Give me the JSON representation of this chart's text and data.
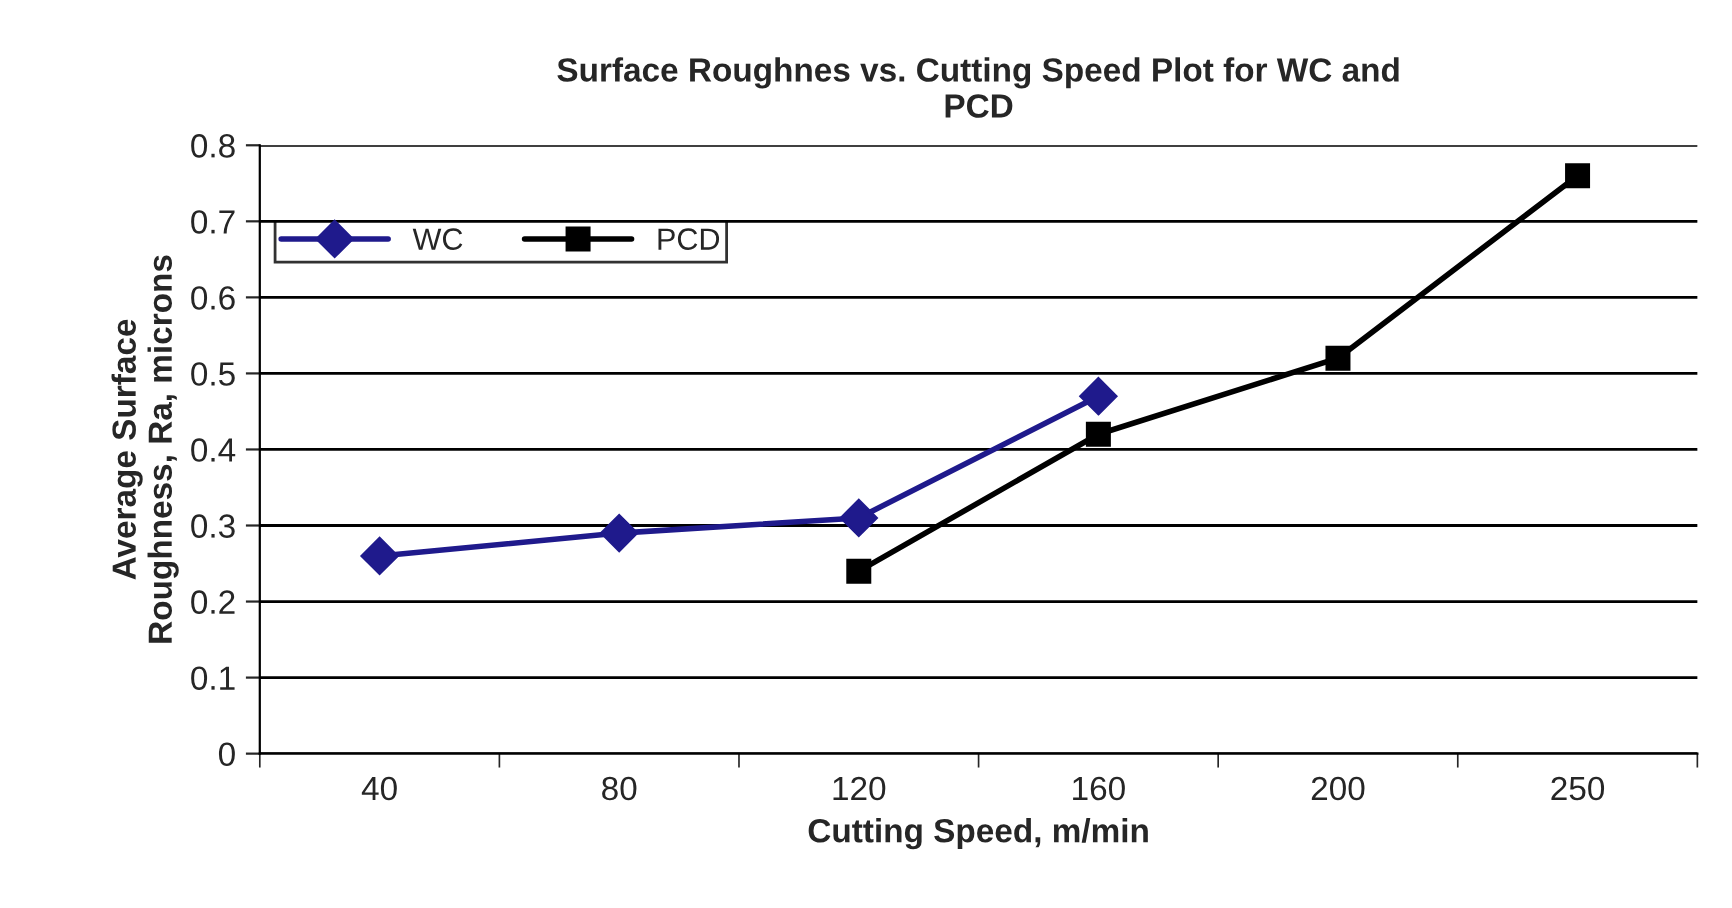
{
  "chart_data": {
    "type": "line",
    "title": "Surface Roughnes vs. Cutting Speed Plot for WC and\nPCD",
    "xlabel": "Cutting Speed, m/min",
    "ylabel": "Average Surface\nRoughness, Ra, microns",
    "categories": [
      "40",
      "80",
      "120",
      "160",
      "200",
      "250"
    ],
    "series": [
      {
        "name": "WC",
        "color": "#1f1a8c",
        "marker": "diamond",
        "values": [
          0.26,
          0.29,
          0.31,
          0.47,
          null,
          null
        ]
      },
      {
        "name": "PCD",
        "color": "#000000",
        "marker": "square",
        "values": [
          null,
          null,
          0.24,
          0.42,
          0.52,
          0.76
        ]
      }
    ],
    "ylim": [
      0,
      0.8
    ],
    "yticks": [
      0,
      0.1,
      0.2,
      0.3,
      0.4,
      0.5,
      0.6,
      0.7,
      0.8
    ],
    "grid": "y",
    "legend": "top left",
    "line_style": "solid"
  }
}
